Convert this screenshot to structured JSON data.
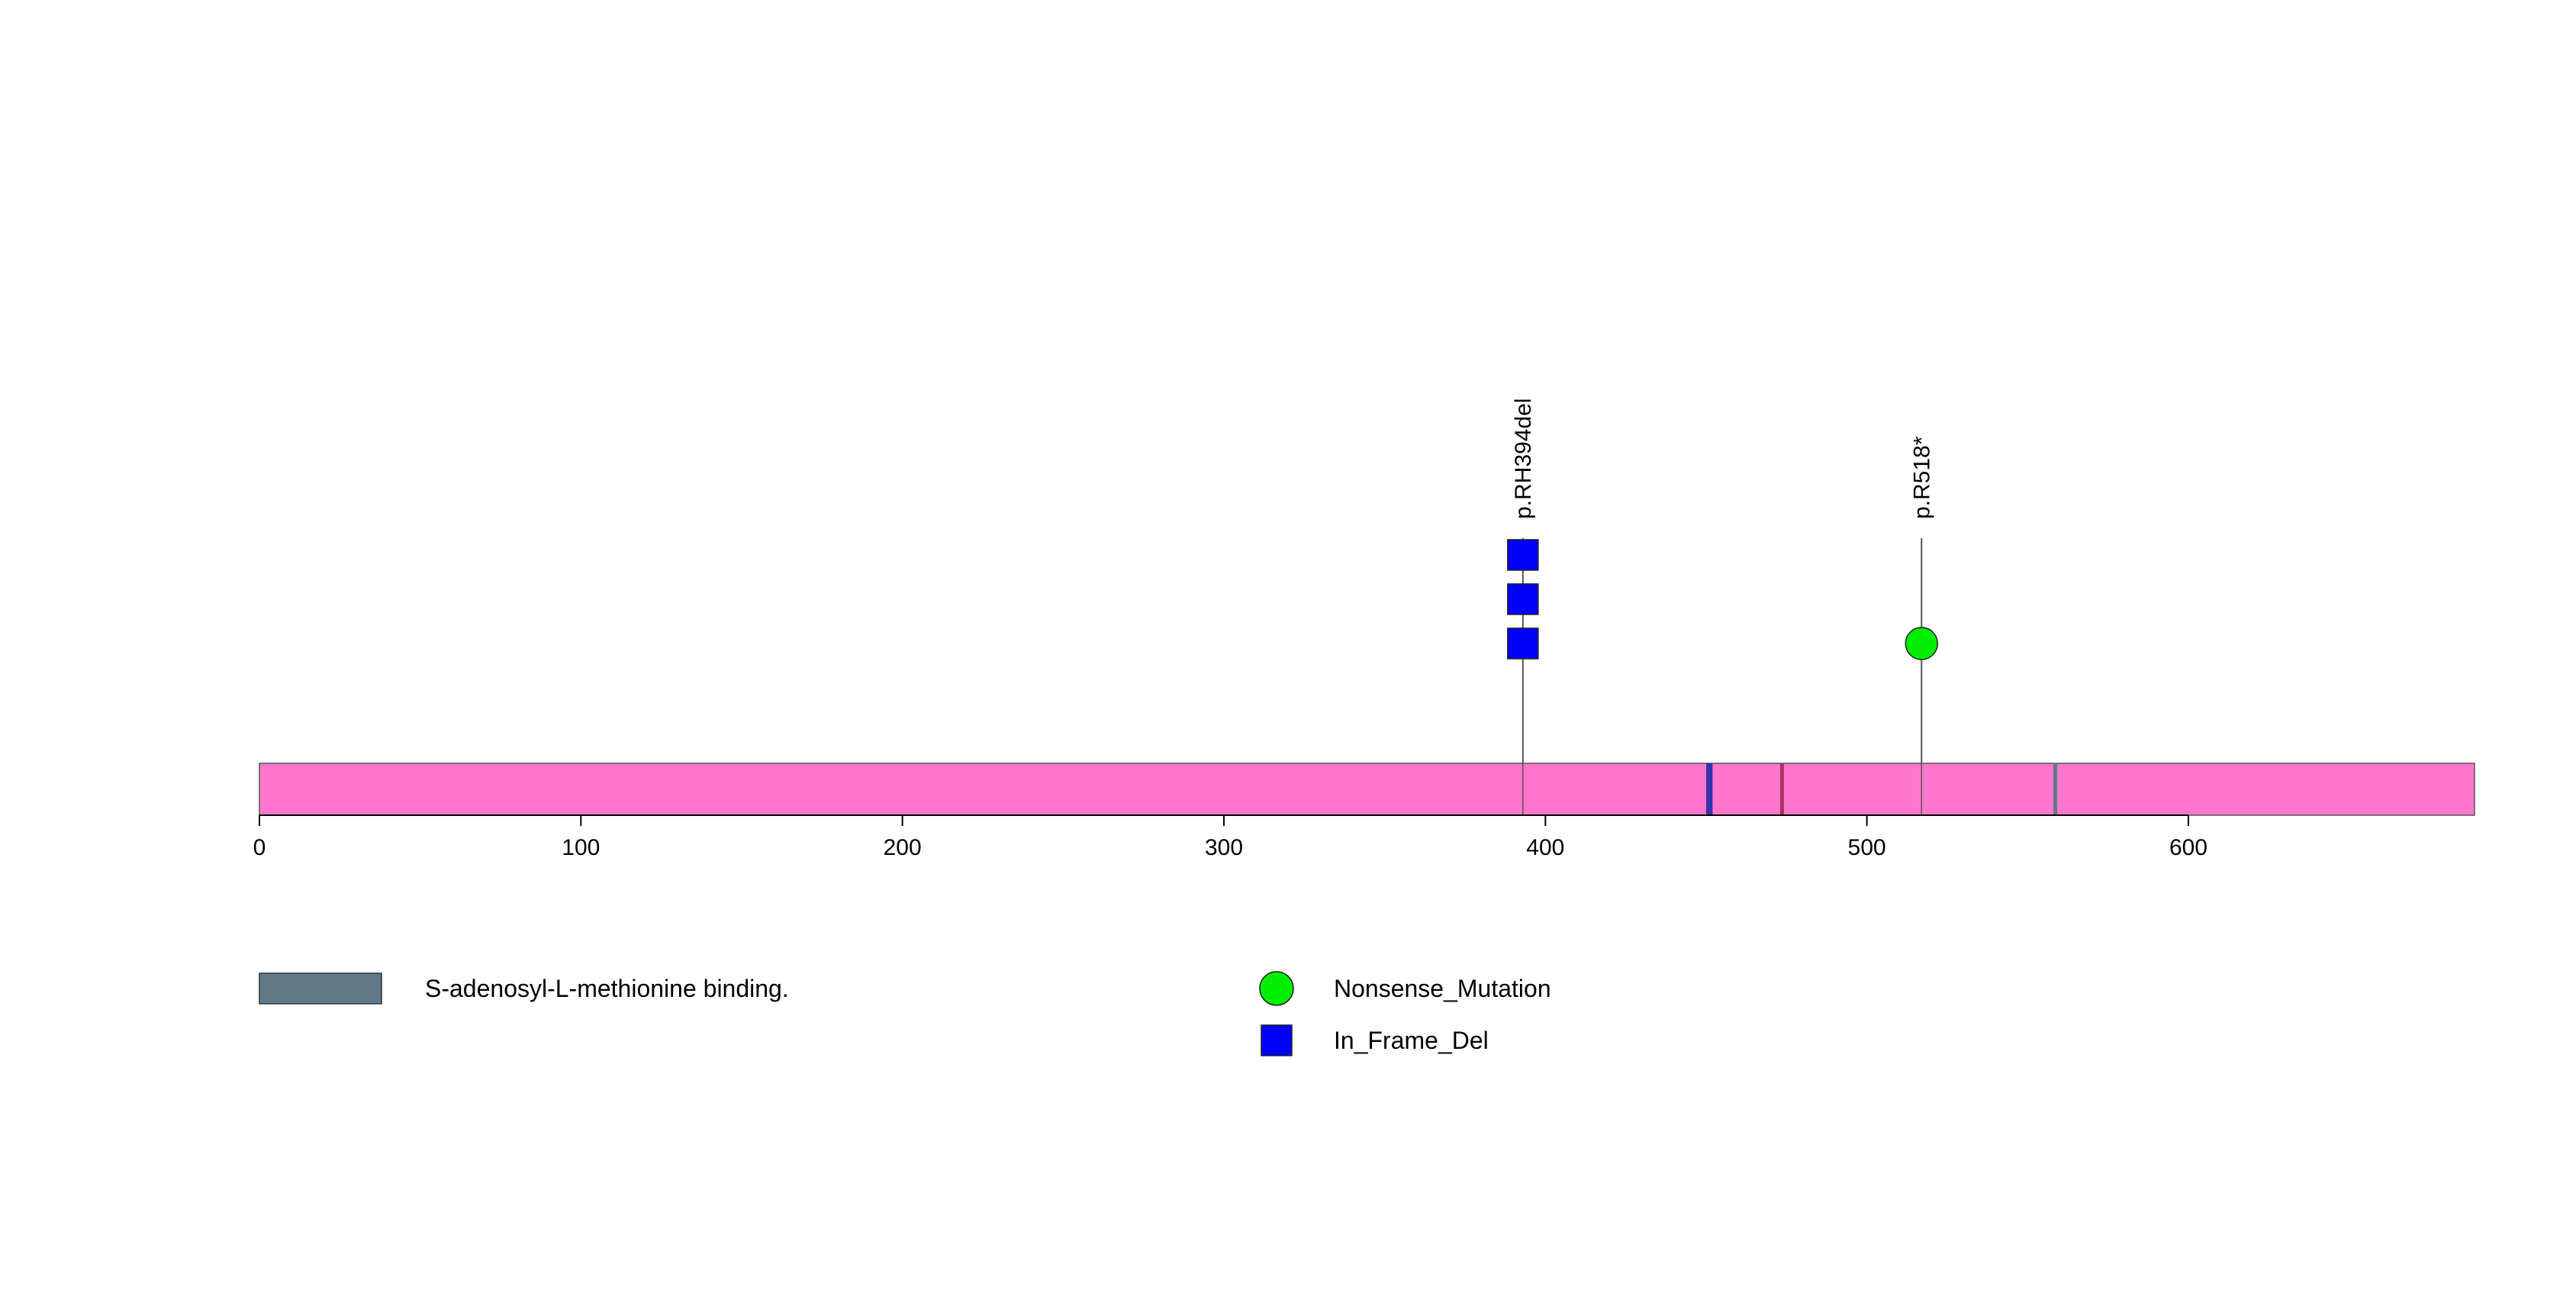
{
  "chart_data": {
    "type": "lollipop",
    "title": "",
    "protein_length": 689,
    "xlim": [
      0,
      689
    ],
    "x_ticks": [
      0,
      100,
      200,
      300,
      400,
      500,
      600
    ],
    "x_tick_labels": [
      "0",
      "100",
      "200",
      "300",
      "400",
      "500",
      "600"
    ],
    "protein_color": "#FF77CC",
    "regions": [
      {
        "start": 450,
        "end": 452,
        "color": "#3333AA"
      },
      {
        "start": 473,
        "end": 474,
        "color": "#AA3366"
      },
      {
        "start": 558,
        "end": 559,
        "color": "#607888"
      }
    ],
    "mutations": [
      {
        "position": 393,
        "label": "p.RH394del",
        "type": "In_Frame_Del",
        "count": 3
      },
      {
        "position": 517,
        "label": "p.R518*",
        "type": "Nonsense_Mutation",
        "count": 1
      }
    ],
    "mutation_styles": {
      "In_Frame_Del": {
        "shape": "square",
        "color": "#0000FF"
      },
      "Nonsense_Mutation": {
        "shape": "circle",
        "color": "#00EE00"
      }
    },
    "legend": {
      "regions": [
        {
          "label": "S-adenosyl-L-methionine binding.",
          "color": "#607888"
        }
      ],
      "mutation_types": [
        {
          "label": "Nonsense_Mutation",
          "shape": "circle",
          "color": "#00EE00"
        },
        {
          "label": "In_Frame_Del",
          "shape": "square",
          "color": "#0000FF"
        }
      ]
    }
  }
}
